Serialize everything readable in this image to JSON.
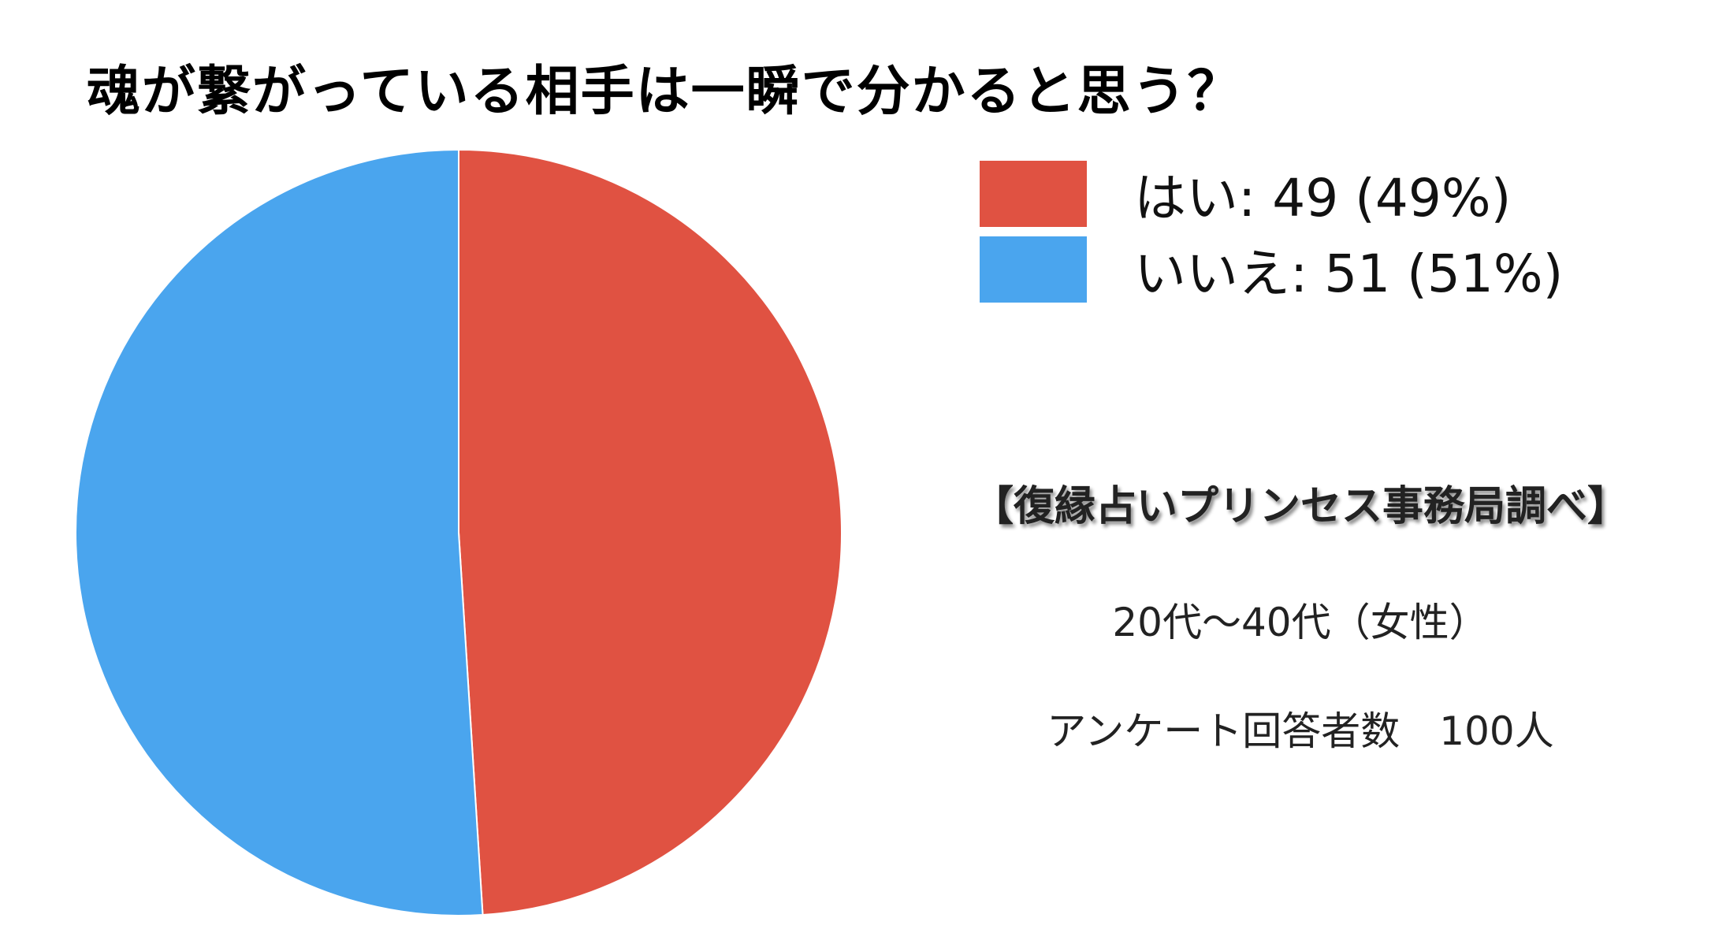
{
  "chart_data": {
    "type": "pie",
    "title": "魂が繋がっている相手は一瞬で分かると思う？",
    "legend_position": "top-right",
    "slices": [
      {
        "label": "はい",
        "value": 49,
        "percent": 49,
        "color": "#E05242",
        "legend_text": "はい: 49 (49%)"
      },
      {
        "label": "いいえ",
        "value": 51,
        "percent": 51,
        "color": "#4AA5EE",
        "legend_text": "いいえ: 51 (51%)"
      }
    ]
  },
  "notes": {
    "source": "【復縁占いプリンセス事務局調べ】",
    "demographic": "20代〜40代（女性）",
    "respondents": "アンケート回答者数　100人"
  }
}
